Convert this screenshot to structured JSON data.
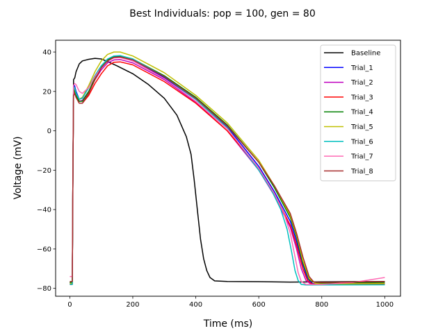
{
  "chart_data": {
    "type": "line",
    "title": "Best Individuals: pop = 100, gen = 80",
    "xlabel": "Time (ms)",
    "ylabel": "Voltage (mV)",
    "xlim": [
      -45,
      1050
    ],
    "ylim": [
      -84,
      46
    ],
    "xticks": [
      0,
      200,
      400,
      600,
      800,
      1000
    ],
    "yticks": [
      -80,
      -60,
      -40,
      -20,
      0,
      20,
      40
    ],
    "grid": false,
    "legend_position": "top-right",
    "series": [
      {
        "name": "Baseline",
        "color": "#000000",
        "points": [
          [
            0,
            -77
          ],
          [
            8,
            -77
          ],
          [
            10,
            -20
          ],
          [
            12,
            26
          ],
          [
            16,
            27
          ],
          [
            20,
            30
          ],
          [
            30,
            34
          ],
          [
            40,
            35.5
          ],
          [
            60,
            36.3
          ],
          [
            80,
            36.8
          ],
          [
            100,
            36.5
          ],
          [
            120,
            35.2
          ],
          [
            150,
            33
          ],
          [
            200,
            29
          ],
          [
            250,
            23.5
          ],
          [
            300,
            16.5
          ],
          [
            340,
            8
          ],
          [
            370,
            -3
          ],
          [
            385,
            -12
          ],
          [
            395,
            -25
          ],
          [
            405,
            -40
          ],
          [
            415,
            -55
          ],
          [
            425,
            -65
          ],
          [
            435,
            -71
          ],
          [
            445,
            -74.5
          ],
          [
            460,
            -76.2
          ],
          [
            500,
            -76.5
          ],
          [
            600,
            -76.6
          ],
          [
            700,
            -76.8
          ],
          [
            800,
            -76.7
          ],
          [
            900,
            -76.6
          ],
          [
            1000,
            -76.5
          ]
        ]
      },
      {
        "name": "Trial_1",
        "color": "#0000ff",
        "points": [
          [
            0,
            -77.5
          ],
          [
            8,
            -77.5
          ],
          [
            10,
            -20
          ],
          [
            12,
            21
          ],
          [
            15,
            23
          ],
          [
            20,
            20
          ],
          [
            30,
            16
          ],
          [
            40,
            17
          ],
          [
            60,
            22
          ],
          [
            80,
            28
          ],
          [
            100,
            33
          ],
          [
            120,
            36
          ],
          [
            140,
            37.5
          ],
          [
            160,
            37.5
          ],
          [
            200,
            35.5
          ],
          [
            300,
            27
          ],
          [
            400,
            16
          ],
          [
            500,
            2
          ],
          [
            600,
            -18
          ],
          [
            650,
            -31
          ],
          [
            700,
            -46
          ],
          [
            720,
            -56
          ],
          [
            740,
            -68
          ],
          [
            755,
            -75
          ],
          [
            770,
            -77.5
          ],
          [
            790,
            -78
          ],
          [
            850,
            -77.8
          ],
          [
            1000,
            -77.5
          ]
        ]
      },
      {
        "name": "Trial_2",
        "color": "#bf00bf",
        "points": [
          [
            0,
            -77
          ],
          [
            8,
            -77
          ],
          [
            10,
            -20
          ],
          [
            12,
            20
          ],
          [
            15,
            22
          ],
          [
            20,
            19
          ],
          [
            30,
            15
          ],
          [
            40,
            15.5
          ],
          [
            60,
            20
          ],
          [
            80,
            26
          ],
          [
            100,
            31
          ],
          [
            120,
            34.5
          ],
          [
            140,
            36
          ],
          [
            160,
            36.2
          ],
          [
            200,
            34.5
          ],
          [
            300,
            26
          ],
          [
            400,
            14.5
          ],
          [
            500,
            0
          ],
          [
            600,
            -20
          ],
          [
            650,
            -33
          ],
          [
            700,
            -49
          ],
          [
            720,
            -60
          ],
          [
            735,
            -70
          ],
          [
            750,
            -76
          ],
          [
            765,
            -77.8
          ],
          [
            800,
            -78
          ],
          [
            1000,
            -77.8
          ]
        ]
      },
      {
        "name": "Trial_3",
        "color": "#ff0000",
        "points": [
          [
            0,
            -78
          ],
          [
            8,
            -78
          ],
          [
            10,
            -20
          ],
          [
            12,
            18
          ],
          [
            15,
            20
          ],
          [
            20,
            17
          ],
          [
            30,
            14
          ],
          [
            40,
            14
          ],
          [
            60,
            18
          ],
          [
            80,
            24
          ],
          [
            100,
            29
          ],
          [
            120,
            33
          ],
          [
            140,
            34.8
          ],
          [
            160,
            35
          ],
          [
            200,
            33.5
          ],
          [
            300,
            25
          ],
          [
            400,
            14
          ],
          [
            500,
            0
          ],
          [
            600,
            -19
          ],
          [
            650,
            -32
          ],
          [
            700,
            -48
          ],
          [
            720,
            -58
          ],
          [
            740,
            -70
          ],
          [
            755,
            -76
          ],
          [
            770,
            -77.8
          ],
          [
            800,
            -78
          ],
          [
            1000,
            -78
          ]
        ]
      },
      {
        "name": "Trial_4",
        "color": "#008000",
        "points": [
          [
            0,
            -77
          ],
          [
            8,
            -77
          ],
          [
            10,
            -20
          ],
          [
            12,
            19
          ],
          [
            15,
            21
          ],
          [
            20,
            18
          ],
          [
            30,
            15
          ],
          [
            40,
            15
          ],
          [
            60,
            20
          ],
          [
            80,
            27
          ],
          [
            100,
            32.5
          ],
          [
            120,
            36
          ],
          [
            140,
            37.8
          ],
          [
            160,
            38
          ],
          [
            200,
            36.5
          ],
          [
            300,
            28
          ],
          [
            400,
            17
          ],
          [
            500,
            3
          ],
          [
            600,
            -16
          ],
          [
            650,
            -29
          ],
          [
            700,
            -44
          ],
          [
            720,
            -54
          ],
          [
            740,
            -67
          ],
          [
            760,
            -75.5
          ],
          [
            780,
            -77.2
          ],
          [
            800,
            -77.3
          ],
          [
            1000,
            -77
          ]
        ]
      },
      {
        "name": "Trial_5",
        "color": "#bfbf00",
        "points": [
          [
            0,
            -77.5
          ],
          [
            8,
            -77.5
          ],
          [
            10,
            -20
          ],
          [
            12,
            21
          ],
          [
            15,
            22
          ],
          [
            20,
            19
          ],
          [
            30,
            16
          ],
          [
            40,
            17
          ],
          [
            60,
            23
          ],
          [
            80,
            30
          ],
          [
            100,
            35.5
          ],
          [
            120,
            38.8
          ],
          [
            140,
            40
          ],
          [
            160,
            40
          ],
          [
            200,
            38
          ],
          [
            300,
            29.5
          ],
          [
            400,
            18
          ],
          [
            500,
            4
          ],
          [
            600,
            -15
          ],
          [
            650,
            -28
          ],
          [
            700,
            -43
          ],
          [
            720,
            -53
          ],
          [
            740,
            -66
          ],
          [
            760,
            -75
          ],
          [
            780,
            -77.5
          ],
          [
            800,
            -77.8
          ],
          [
            1000,
            -77.5
          ]
        ]
      },
      {
        "name": "Trial_6",
        "color": "#00bfbf",
        "points": [
          [
            0,
            -78
          ],
          [
            8,
            -78
          ],
          [
            10,
            -20
          ],
          [
            12,
            21
          ],
          [
            15,
            22
          ],
          [
            20,
            19
          ],
          [
            30,
            16
          ],
          [
            40,
            16.5
          ],
          [
            60,
            22
          ],
          [
            80,
            28
          ],
          [
            100,
            33
          ],
          [
            120,
            36.5
          ],
          [
            140,
            38
          ],
          [
            160,
            38.2
          ],
          [
            200,
            36.5
          ],
          [
            300,
            27.5
          ],
          [
            400,
            16
          ],
          [
            500,
            1.5
          ],
          [
            600,
            -20
          ],
          [
            640,
            -30
          ],
          [
            670,
            -40
          ],
          [
            690,
            -50
          ],
          [
            705,
            -62
          ],
          [
            715,
            -71
          ],
          [
            725,
            -76
          ],
          [
            735,
            -78
          ],
          [
            750,
            -78.3
          ],
          [
            1000,
            -78.2
          ]
        ]
      },
      {
        "name": "Trial_7",
        "color": "#ff69b4",
        "points": [
          [
            0,
            -74
          ],
          [
            8,
            -74
          ],
          [
            10,
            -20
          ],
          [
            12,
            23
          ],
          [
            15,
            24
          ],
          [
            20,
            23.5
          ],
          [
            30,
            20
          ],
          [
            40,
            19
          ],
          [
            60,
            22
          ],
          [
            80,
            27.5
          ],
          [
            100,
            32
          ],
          [
            120,
            35.5
          ],
          [
            140,
            37
          ],
          [
            160,
            37.2
          ],
          [
            200,
            35.5
          ],
          [
            300,
            26.5
          ],
          [
            400,
            15
          ],
          [
            500,
            1
          ],
          [
            600,
            -19
          ],
          [
            650,
            -32
          ],
          [
            680,
            -42
          ],
          [
            700,
            -52
          ],
          [
            715,
            -64
          ],
          [
            725,
            -72
          ],
          [
            735,
            -76.5
          ],
          [
            750,
            -78
          ],
          [
            800,
            -78
          ],
          [
            900,
            -77
          ],
          [
            1000,
            -74.5
          ]
        ]
      },
      {
        "name": "Trial_8",
        "color": "#a52a2a",
        "points": [
          [
            0,
            -76.5
          ],
          [
            8,
            -76.5
          ],
          [
            10,
            -20
          ],
          [
            12,
            18
          ],
          [
            15,
            19
          ],
          [
            20,
            17
          ],
          [
            30,
            14
          ],
          [
            40,
            14
          ],
          [
            60,
            19
          ],
          [
            80,
            26
          ],
          [
            100,
            32
          ],
          [
            120,
            35.5
          ],
          [
            140,
            37.3
          ],
          [
            160,
            37.5
          ],
          [
            200,
            36
          ],
          [
            300,
            27.5
          ],
          [
            400,
            16.5
          ],
          [
            500,
            2.5
          ],
          [
            600,
            -16
          ],
          [
            650,
            -28
          ],
          [
            700,
            -42
          ],
          [
            720,
            -52
          ],
          [
            740,
            -64
          ],
          [
            760,
            -74
          ],
          [
            775,
            -76.8
          ],
          [
            800,
            -77
          ],
          [
            1000,
            -76.6
          ]
        ]
      }
    ]
  }
}
